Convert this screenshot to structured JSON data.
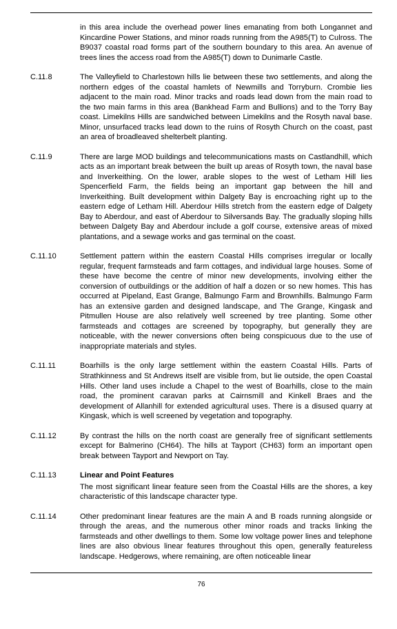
{
  "page_number": "76",
  "entries": [
    {
      "num": "",
      "heading": "",
      "text": "in this area include the overhead power lines emanating from both Longannet and Kincardine Power Stations, and minor roads running from the A985(T) to Culross.  The B9037 coastal road forms part of the southern boundary to this area.  An avenue of trees lines the access road from the A985(T) down to Dunimarle Castle."
    },
    {
      "num": "C.11.8",
      "heading": "",
      "text": "The Valleyfield to Charlestown hills lie between these two settlements, and along the northern edges of the coastal hamlets of Newmills and Torryburn.  Crombie lies adjacent to the main road.  Minor tracks and roads lead down from the main road to the two main farms in this area (Bankhead Farm and Bullions) and to the Torry Bay coast.  Limekilns Hills are sandwiched between Limekilns and the Rosyth naval base.  Minor, unsurfaced tracks lead down to the ruins of Rosyth Church on the coast, past an area of broadleaved shelterbelt planting."
    },
    {
      "num": "C.11.9",
      "heading": "",
      "text": "There are large MOD buildings and telecommunications masts on Castlandhill, which acts as an important break between the built up areas of Rosyth town, the naval base and Inverkeithing.  On the lower, arable slopes to the west of Letham Hill lies Spencerfield Farm, the fields being an important gap between the hill and Inverkeithing.  Built development within Dalgety Bay is encroaching right up to the eastern edge of Letham Hill.  Aberdour Hills stretch from the eastern edge of Dalgety Bay to Aberdour, and east of Aberdour to Silversands Bay.  The gradually sloping hills between Dalgety Bay and Aberdour include a golf course, extensive areas of mixed plantations, and a sewage works and gas terminal on the coast."
    },
    {
      "num": "C.11.10",
      "heading": "",
      "text": "Settlement pattern within the eastern Coastal Hills comprises  irregular or locally regular, frequent farmsteads and farm cottages, and individual large houses.  Some of these have become the centre of minor new developments, involving either the conversion of outbuildings or the addition of half a dozen or so new homes.  This has occurred at Pipeland, East Grange, Balmungo Farm and Brownhills.  Balmungo Farm has an extensive garden and designed landscape, and The Grange, Kingask and Pitmullen House are also relatively well screened by tree planting.  Some other farmsteads and cottages are screened by topography, but generally they are noticeable, with the newer conversions often being conspicuous due to the use of inappropriate materials and styles."
    },
    {
      "num": "C.11.11",
      "heading": "",
      "text": "Boarhills is the only large settlement within the eastern Coastal Hills.  Parts of Strathkinness and St Andrews itself are visible from, but lie outside, the open Coastal Hills.  Other land uses include a Chapel to the west of Boarhills, close to the main road, the prominent caravan parks at Cairnsmill and Kinkell Braes and the development of Allanhill for extended agricultural uses.  There is a disused quarry at Kingask, which is well screened by vegetation and topography."
    },
    {
      "num": "C.11.12",
      "heading": "",
      "text": "By contrast the hills on the north coast are generally free of significant settlements except for Balmerino (CH64).  The hills at Tayport (CH63) form an important open break between Tayport and Newport on Tay."
    },
    {
      "num": "C.11.13",
      "heading": "Linear and Point Features",
      "text": "The most significant linear feature seen from the Coastal Hills are the shores, a key characteristic of this landscape character type."
    },
    {
      "num": "C.11.14",
      "heading": "",
      "text": "Other predominant linear features are the main A and B roads running alongside or through the areas, and the numerous other minor roads and tracks linking the farmsteads and other dwellings to them.  Some low voltage power lines and telephone lines are also obvious linear features throughout this open, generally featureless landscape.  Hedgerows, where remaining, are often noticeable linear"
    }
  ]
}
